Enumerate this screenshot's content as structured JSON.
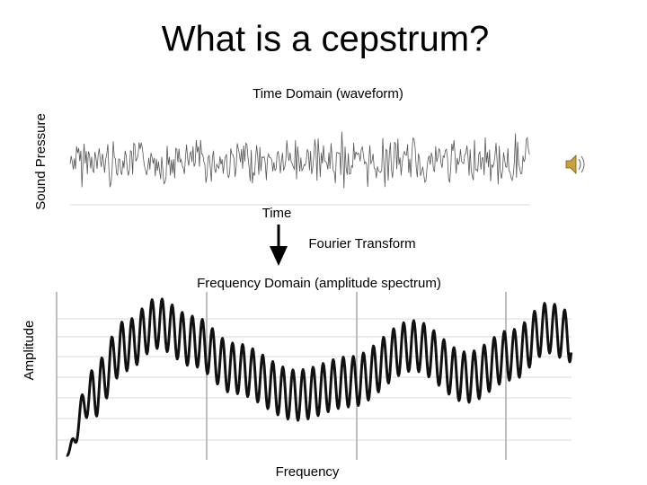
{
  "title": "What is a cepstrum?",
  "time_panel": {
    "title": "Time Domain (waveform)",
    "y_label": "Sound Pressure",
    "x_label": "Time"
  },
  "transform_label": "Fourier Transform",
  "frequency_panel": {
    "title": "Frequency Domain (amplitude spectrum)",
    "y_label": "Amplitude",
    "x_label": "Frequency"
  }
}
